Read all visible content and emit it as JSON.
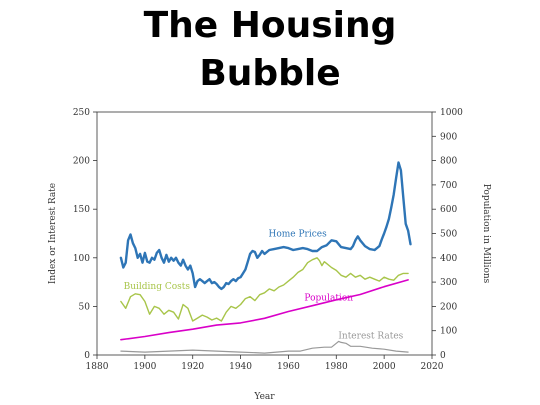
{
  "slide": {
    "title_line1": "The Housing",
    "title_line2": "Bubble"
  },
  "chart_data": {
    "type": "line",
    "xlabel": "Year",
    "ylabel_left": "Index or Interest Rate",
    "ylabel_right": "Population in Millions",
    "xlim": [
      1880,
      2020
    ],
    "ylim_left": [
      0,
      250
    ],
    "ylim_right": [
      0,
      1000
    ],
    "x_ticks": [
      1880,
      1900,
      1920,
      1940,
      1960,
      1980,
      2000,
      2020
    ],
    "y_ticks_left": [
      0,
      50,
      100,
      150,
      200,
      250
    ],
    "y_ticks_right": [
      0,
      100,
      200,
      300,
      400,
      500,
      600,
      700,
      800,
      900,
      1000
    ],
    "grid": false,
    "series": [
      {
        "name": "Home Prices",
        "color": "#2e75b6",
        "axis": "left",
        "x": [
          1890,
          1891,
          1892,
          1893,
          1894,
          1895,
          1896,
          1897,
          1898,
          1899,
          1900,
          1901,
          1902,
          1903,
          1904,
          1905,
          1906,
          1907,
          1908,
          1909,
          1910,
          1911,
          1912,
          1913,
          1914,
          1915,
          1916,
          1917,
          1918,
          1919,
          1920,
          1921,
          1922,
          1923,
          1924,
          1925,
          1926,
          1927,
          1928,
          1929,
          1930,
          1931,
          1932,
          1933,
          1934,
          1935,
          1936,
          1937,
          1938,
          1939,
          1940,
          1941,
          1942,
          1943,
          1944,
          1945,
          1946,
          1947,
          1948,
          1949,
          1950,
          1952,
          1954,
          1956,
          1958,
          1960,
          1962,
          1964,
          1966,
          1968,
          1970,
          1972,
          1974,
          1976,
          1978,
          1980,
          1982,
          1984,
          1986,
          1987,
          1988,
          1989,
          1990,
          1992,
          1994,
          1996,
          1997,
          1998,
          1999,
          2000,
          2001,
          2002,
          2003,
          2004,
          2005,
          2006,
          2007,
          2008,
          2009,
          2010,
          2011
        ],
        "y": [
          100,
          90,
          95,
          118,
          124,
          115,
          110,
          100,
          104,
          95,
          105,
          96,
          95,
          100,
          98,
          105,
          108,
          100,
          95,
          103,
          96,
          100,
          97,
          100,
          95,
          92,
          98,
          92,
          88,
          92,
          84,
          70,
          76,
          78,
          76,
          74,
          76,
          78,
          74,
          75,
          73,
          70,
          68,
          70,
          74,
          73,
          76,
          78,
          76,
          79,
          80,
          84,
          88,
          96,
          104,
          107,
          106,
          100,
          103,
          107,
          104,
          108,
          109,
          110,
          111,
          110,
          108,
          109,
          110,
          109,
          107,
          107,
          111,
          113,
          118,
          117,
          111,
          110,
          109,
          112,
          118,
          122,
          118,
          112,
          109,
          108,
          110,
          112,
          119,
          125,
          132,
          140,
          152,
          165,
          182,
          198,
          190,
          162,
          135,
          128,
          114
        ]
      },
      {
        "name": "Building Costs",
        "color": "#a8c54a",
        "axis": "left",
        "x": [
          1890,
          1892,
          1894,
          1896,
          1898,
          1900,
          1902,
          1904,
          1906,
          1908,
          1910,
          1912,
          1914,
          1916,
          1918,
          1920,
          1922,
          1924,
          1926,
          1928,
          1930,
          1932,
          1934,
          1936,
          1938,
          1940,
          1942,
          1944,
          1946,
          1948,
          1950,
          1952,
          1954,
          1956,
          1958,
          1960,
          1962,
          1964,
          1966,
          1968,
          1970,
          1972,
          1973,
          1974,
          1975,
          1976,
          1978,
          1980,
          1982,
          1984,
          1986,
          1988,
          1990,
          1992,
          1994,
          1996,
          1998,
          2000,
          2002,
          2004,
          2006,
          2008,
          2010
        ],
        "y": [
          55,
          48,
          60,
          63,
          62,
          55,
          42,
          50,
          48,
          42,
          46,
          44,
          37,
          52,
          48,
          35,
          38,
          41,
          39,
          36,
          38,
          35,
          44,
          50,
          48,
          52,
          58,
          60,
          56,
          62,
          64,
          68,
          66,
          70,
          72,
          76,
          80,
          85,
          88,
          95,
          98,
          100,
          97,
          92,
          96,
          94,
          90,
          87,
          82,
          80,
          84,
          80,
          82,
          78,
          80,
          78,
          76,
          80,
          78,
          77,
          82,
          84,
          84
        ]
      },
      {
        "name": "Population",
        "color": "#d900c8",
        "axis": "right",
        "x": [
          1890,
          1900,
          1910,
          1920,
          1930,
          1940,
          1950,
          1960,
          1970,
          1980,
          1990,
          2000,
          2010
        ],
        "y": [
          63,
          76,
          92,
          106,
          123,
          132,
          151,
          179,
          203,
          227,
          249,
          281,
          309
        ]
      },
      {
        "name": "Interest Rates",
        "color": "#999999",
        "axis": "left",
        "x": [
          1890,
          1900,
          1910,
          1920,
          1930,
          1940,
          1950,
          1955,
          1960,
          1965,
          1970,
          1975,
          1978,
          1980,
          1981,
          1982,
          1984,
          1986,
          1990,
          1995,
          2000,
          2005,
          2010
        ],
        "y": [
          4,
          3,
          4,
          5,
          4,
          3,
          2,
          3,
          4,
          4,
          7,
          8,
          8,
          12,
          14,
          13,
          12,
          9,
          9,
          7,
          6,
          4,
          3
        ]
      }
    ],
    "annotations": [
      {
        "text": "Home Prices",
        "series": "Home Prices"
      },
      {
        "text": "Building Costs",
        "series": "Building Costs"
      },
      {
        "text": "Population",
        "series": "Population"
      },
      {
        "text": "Interest Rates",
        "series": "Interest Rates"
      }
    ]
  }
}
